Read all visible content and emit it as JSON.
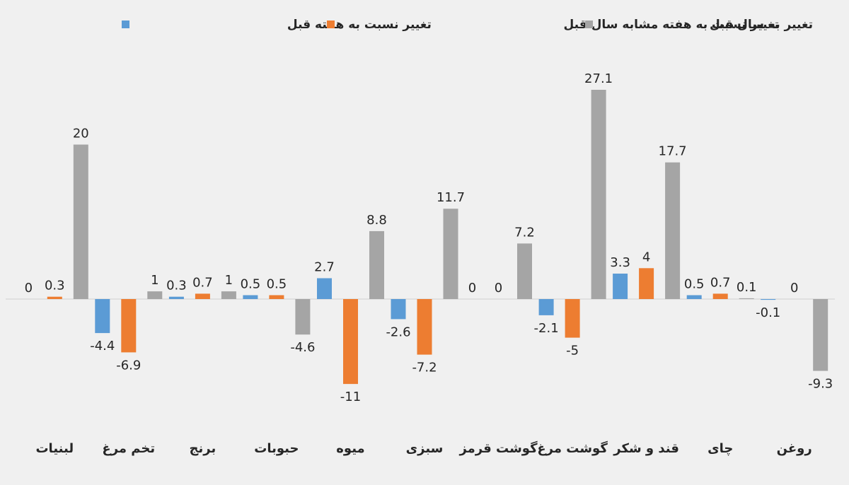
{
  "chart_data": {
    "type": "bar",
    "direction": "rtl",
    "categories": [
      "روغن",
      "چای",
      "قند و شکر",
      "گوشت مرغ",
      "گوشت قرمز",
      "سبزی",
      "میوه",
      "حبوبات",
      "برنج",
      "تخم مرغ",
      "لبنیات"
    ],
    "series": [
      {
        "name": "تغییر نسبت به هفته قبل",
        "color": "#5b9bd5",
        "values": [
          -0.1,
          0.5,
          3.3,
          -2.1,
          0,
          -2.6,
          2.7,
          0.5,
          0.3,
          -4.4,
          0
        ]
      },
      {
        "name": "تغییر نسبت به هفته مشابه سال قبل",
        "color": "#ed7d31",
        "values": [
          0,
          0.7,
          4,
          -5,
          0,
          -7.2,
          -11,
          0.5,
          0.7,
          -6.9,
          0.3
        ]
      },
      {
        "name": "تغییر به سال قبل",
        "color": "#a5a5a5",
        "values": [
          -9.3,
          0.1,
          17.7,
          27.1,
          7.2,
          11.7,
          8.8,
          -4.6,
          1,
          1,
          20
        ]
      }
    ],
    "ylim": [
      -13,
      30
    ],
    "grid": false,
    "legend_position": "top",
    "highlight_label_color": "#e03b3b"
  }
}
